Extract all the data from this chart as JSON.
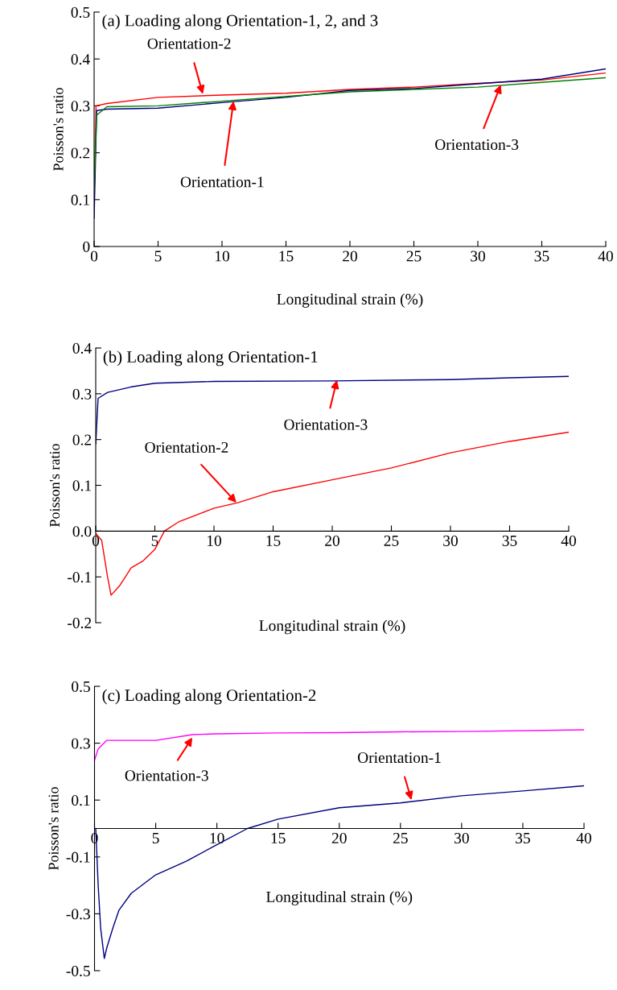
{
  "chart_data": [
    {
      "type": "line",
      "title": "(a) Loading along Orientation-1, 2, and 3",
      "xlabel": "Longitudinal strain (%)",
      "ylabel": "Poisson's ratio",
      "xlim": [
        0,
        40
      ],
      "ylim": [
        0,
        0.5
      ],
      "xticks": [
        0,
        5,
        10,
        15,
        20,
        25,
        30,
        35,
        40
      ],
      "yticks": [
        0,
        0.1,
        0.2,
        0.3,
        0.4,
        0.5
      ],
      "series": [
        {
          "color": "#ff0000",
          "x": [
            0,
            0.15,
            1,
            5,
            10,
            15,
            20,
            25,
            30,
            35,
            40
          ],
          "values": [
            0.1,
            0.3,
            0.305,
            0.318,
            0.323,
            0.327,
            0.335,
            0.34,
            0.348,
            0.355,
            0.37
          ]
        },
        {
          "color": "#000080",
          "x": [
            0,
            0.2,
            1,
            5,
            10,
            15,
            20,
            25,
            30,
            35,
            40
          ],
          "values": [
            0.06,
            0.29,
            0.293,
            0.295,
            0.307,
            0.318,
            0.333,
            0.337,
            0.347,
            0.357,
            0.379
          ]
        },
        {
          "color": "#008000",
          "x": [
            0,
            0.2,
            1,
            5,
            10,
            15,
            20,
            25,
            30,
            35,
            40
          ],
          "values": [
            0.12,
            0.28,
            0.298,
            0.3,
            0.31,
            0.32,
            0.33,
            0.335,
            0.34,
            0.35,
            0.36
          ]
        }
      ],
      "annotations": [
        {
          "text": "Orientation-2",
          "x": 8.5,
          "y": 0.325
        },
        {
          "text": "Orientation-1",
          "x": 10.9,
          "y": 0.31
        },
        {
          "text": "Orientation-3",
          "x": 31.8,
          "y": 0.345
        }
      ]
    },
    {
      "type": "line",
      "title": "(b) Loading along Orientation-1",
      "xlabel": "Longitudinal strain (%)",
      "ylabel": "Poisson's ratio",
      "xlim": [
        0,
        40
      ],
      "ylim": [
        -0.2,
        0.4
      ],
      "xticks": [
        0,
        5,
        10,
        15,
        20,
        25,
        30,
        35,
        40
      ],
      "yticks": [
        {
          "value": -0.2,
          "label": "-0.2"
        },
        {
          "value": -0.1,
          "label": "-0.1"
        },
        {
          "value": 0,
          "label": "0.0"
        },
        0.1,
        0.2,
        0.3,
        0.4
      ],
      "series": [
        {
          "color": "#000080",
          "x": [
            0,
            0.2,
            1,
            3,
            5,
            10,
            20,
            30,
            35,
            40
          ],
          "values": [
            0.19,
            0.29,
            0.303,
            0.315,
            0.323,
            0.327,
            0.328,
            0.331,
            0.335,
            0.338
          ]
        },
        {
          "color": "#ff0000",
          "x": [
            0,
            0.5,
            1,
            1.3,
            2,
            3,
            4,
            5,
            5.8,
            7,
            10,
            12,
            15,
            20,
            25,
            30,
            35,
            40
          ],
          "values": [
            -0.005,
            -0.02,
            -0.1,
            -0.14,
            -0.12,
            -0.08,
            -0.065,
            -0.04,
            0,
            0.02,
            0.05,
            0.062,
            0.086,
            0.112,
            0.138,
            0.171,
            0.196,
            0.216
          ]
        }
      ],
      "annotations": [
        {
          "text": "Orientation-3",
          "x": 20.4,
          "y": 0.33
        },
        {
          "text": "Orientation-2",
          "x": 11.9,
          "y": 0.062
        }
      ]
    },
    {
      "type": "line",
      "title": "(c) Loading along Orientation-2",
      "xlabel": "Longitudinal strain (%)",
      "ylabel": "Poisson's ratio",
      "xlim": [
        0,
        40
      ],
      "ylim": [
        -0.5,
        0.5
      ],
      "xticks": [
        0,
        5,
        10,
        15,
        20,
        25,
        30,
        35,
        40
      ],
      "yticks": [
        {
          "value": -0.5,
          "label": "-0.5"
        },
        {
          "value": -0.3,
          "label": "-0.3"
        },
        {
          "value": -0.1,
          "label": "-0.1"
        },
        0.1,
        0.3,
        0.5
      ],
      "series": [
        {
          "color": "#ff00ff",
          "x": [
            0,
            0.3,
            1,
            2,
            5,
            8,
            10,
            15,
            20,
            25,
            30,
            40
          ],
          "values": [
            0.24,
            0.28,
            0.31,
            0.31,
            0.31,
            0.33,
            0.333,
            0.336,
            0.337,
            0.34,
            0.341,
            0.347
          ]
        },
        {
          "color": "#000080",
          "x": [
            0,
            0.1,
            0.3,
            0.5,
            0.8,
            1,
            1.5,
            2,
            3,
            5,
            7.5,
            10,
            12.5,
            15,
            20,
            25,
            30,
            35,
            40
          ],
          "values": [
            0,
            0,
            -0.2,
            -0.35,
            -0.457,
            -0.42,
            -0.35,
            -0.287,
            -0.228,
            -0.163,
            -0.115,
            -0.057,
            0,
            0.033,
            0.073,
            0.09,
            0.115,
            0.132,
            0.15
          ]
        }
      ],
      "annotations": [
        {
          "text": "Orientation-3",
          "x": 8,
          "y": 0.32
        },
        {
          "text": "Orientation-1",
          "x": 25.9,
          "y": 0.1
        }
      ]
    }
  ]
}
